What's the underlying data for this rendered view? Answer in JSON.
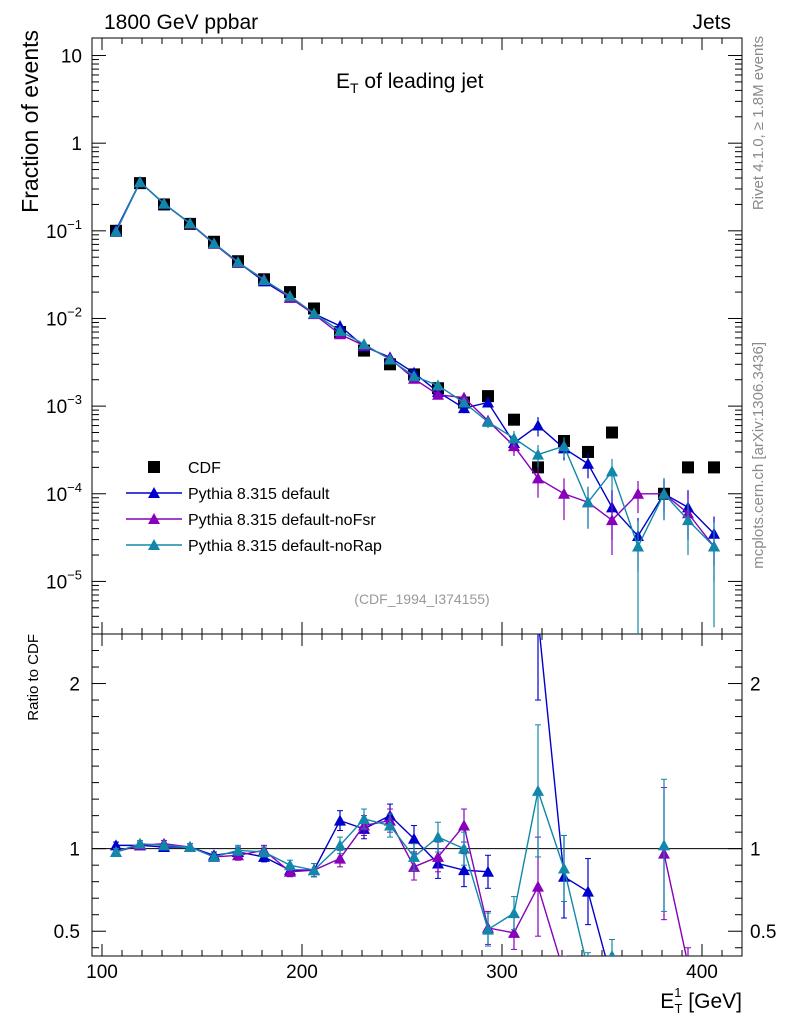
{
  "header": {
    "left": "1800 GeV ppbar",
    "right": "Jets"
  },
  "side_labels": {
    "rivet": "Rivet 4.1.0, ≥ 1.8M events",
    "mcplots": "mcplots.cern.ch [arXiv:1306.3436]"
  },
  "chart_data": {
    "type": "scatter",
    "title_main": "E",
    "title_sub": "T",
    "title_rest": " of leading jet",
    "watermark": "(CDF_1994_I374155)",
    "ylabel": "Fraction of events",
    "ratio_ylabel": "Ratio to CDF",
    "xlabel_main": "E",
    "xlabel_sup": "1",
    "xlabel_sub": "T",
    "xlabel_rest": " [GeV]",
    "xlim": [
      95,
      420
    ],
    "ylim_log": [
      -5.6,
      1.2
    ],
    "ratio_ylim": [
      0.35,
      2.3
    ],
    "x_ticks": [
      100,
      200,
      300,
      400
    ],
    "x_tick_labels": [
      "100",
      "200",
      "300",
      "400"
    ],
    "y_ticks": [
      {
        "value": 1,
        "base": "10",
        "exp": ""
      },
      {
        "value": 0,
        "base": "1",
        "exp": ""
      },
      {
        "value": -1,
        "base": "10",
        "exp": "−1"
      },
      {
        "value": -2,
        "base": "10",
        "exp": "−2"
      },
      {
        "value": -3,
        "base": "10",
        "exp": "−3"
      },
      {
        "value": -4,
        "base": "10",
        "exp": "−4"
      },
      {
        "value": -5,
        "base": "10",
        "exp": "−5"
      }
    ],
    "ratio_ticks": [
      0.5,
      1,
      2
    ],
    "ratio_tick_labels": [
      "0.5",
      "1",
      "2"
    ],
    "legend_position": "lower-left",
    "x": [
      107,
      119,
      131,
      144,
      156,
      168,
      181,
      194,
      206,
      219,
      231,
      244,
      256,
      268,
      281,
      293,
      306,
      318,
      331,
      343,
      355,
      368,
      381,
      393,
      406
    ],
    "series": [
      {
        "name": "CDF",
        "color": "#000000",
        "marker": "square",
        "values": [
          0.1,
          0.35,
          0.2,
          0.12,
          0.075,
          0.045,
          0.028,
          0.02,
          0.013,
          0.007,
          0.0043,
          0.003,
          0.0023,
          0.0016,
          0.0011,
          0.0013,
          0.0007,
          0.0002,
          0.0004,
          0.0003,
          0.0005,
          null,
          0.0001,
          0.0002,
          0.0002
        ]
      },
      {
        "name": "Pythia 8.315 default",
        "color": "#0000cc",
        "marker": "triangle",
        "values": [
          0.102,
          0.36,
          0.203,
          0.122,
          0.072,
          0.044,
          0.0265,
          0.0173,
          0.0113,
          0.0082,
          0.0048,
          0.0036,
          0.0024,
          0.00145,
          0.00095,
          0.0011,
          0.00038,
          0.0006,
          0.00033,
          0.00022,
          7e-05,
          3.3e-05,
          0.0001,
          7e-05,
          3.5e-05
        ],
        "errors": [
          0.003,
          0.01,
          0.006,
          0.004,
          0.002,
          0.0015,
          0.001,
          0.0007,
          0.0005,
          0.0004,
          0.0003,
          0.00025,
          0.0002,
          0.00015,
          0.00012,
          0.00013,
          8e-05,
          0.00015,
          9e-05,
          7e-05,
          4e-05,
          2e-05,
          5e-05,
          4e-05,
          2e-05
        ]
      },
      {
        "name": "Pythia 8.315 default-noFsr",
        "color": "#8800bb",
        "marker": "triangle",
        "values": [
          0.098,
          0.358,
          0.205,
          0.121,
          0.071,
          0.043,
          0.028,
          0.0172,
          0.0112,
          0.0066,
          0.0049,
          0.0035,
          0.00205,
          0.00135,
          0.00125,
          0.00068,
          0.00035,
          0.00015,
          0.0001,
          8e-05,
          5e-05,
          0.0001,
          0.0001,
          6e-05,
          2.5e-05
        ],
        "errors": [
          0.003,
          0.01,
          0.006,
          0.004,
          0.002,
          0.0015,
          0.001,
          0.0007,
          0.0005,
          0.0004,
          0.0003,
          0.00025,
          0.0002,
          0.00015,
          0.00015,
          0.0001,
          8e-05,
          6e-05,
          5e-05,
          4e-05,
          3e-05,
          4e-05,
          4e-05,
          3e-05,
          1.5e-05
        ]
      },
      {
        "name": "Pythia 8.315 default-noRap",
        "color": "#1188aa",
        "marker": "triangle",
        "values": [
          0.098,
          0.36,
          0.204,
          0.122,
          0.072,
          0.044,
          0.0275,
          0.018,
          0.0114,
          0.0072,
          0.0051,
          0.0034,
          0.0022,
          0.00172,
          0.0011,
          0.00066,
          0.00043,
          0.00028,
          0.00035,
          8e-05,
          0.00018,
          2.5e-05,
          0.0001,
          5e-05,
          2.5e-05
        ],
        "errors": [
          0.003,
          0.01,
          0.006,
          0.004,
          0.002,
          0.0015,
          0.001,
          0.0007,
          0.0005,
          0.0004,
          0.0003,
          0.00025,
          0.0002,
          0.00015,
          0.00013,
          0.0001,
          9e-05,
          8e-05,
          9e-05,
          4e-05,
          7e-05,
          2.4e-05,
          5e-05,
          3e-05,
          2.2e-05
        ]
      }
    ],
    "ratio_series": [
      {
        "name": "Pythia 8.315 default",
        "color": "#0000cc",
        "values": [
          1.02,
          1.02,
          1.01,
          1.01,
          0.96,
          0.98,
          0.95,
          0.87,
          0.87,
          1.17,
          1.12,
          1.2,
          1.06,
          0.91,
          0.87,
          0.86,
          null,
          2.4,
          0.83,
          0.74,
          0.2,
          null,
          null,
          null,
          null
        ],
        "errors": [
          0.02,
          0.02,
          0.02,
          0.02,
          0.02,
          0.03,
          0.03,
          0.03,
          0.04,
          0.06,
          0.06,
          0.07,
          0.08,
          0.09,
          0.1,
          0.1,
          null,
          0.5,
          0.25,
          0.2,
          0.1,
          null,
          null,
          null,
          null
        ]
      },
      {
        "name": "Pythia 8.315 default-noFsr",
        "color": "#8800bb",
        "values": [
          0.98,
          1.02,
          1.03,
          1.01,
          0.95,
          0.96,
          0.99,
          0.86,
          0.87,
          0.94,
          1.14,
          1.17,
          0.89,
          0.95,
          1.14,
          0.52,
          0.49,
          0.77,
          0.25,
          null,
          null,
          null,
          0.97,
          0.3,
          null
        ],
        "errors": [
          0.02,
          0.02,
          0.02,
          0.02,
          0.02,
          0.03,
          0.03,
          0.03,
          0.04,
          0.05,
          0.06,
          0.07,
          0.08,
          0.09,
          0.1,
          0.1,
          0.1,
          0.3,
          0.1,
          null,
          null,
          null,
          0.4,
          0.1,
          null
        ]
      },
      {
        "name": "Pythia 8.315 default-noRap",
        "color": "#1188aa",
        "values": [
          0.98,
          1.03,
          1.02,
          1.01,
          0.95,
          0.99,
          0.98,
          0.9,
          0.87,
          1.02,
          1.18,
          1.14,
          0.95,
          1.07,
          1.0,
          0.51,
          0.61,
          1.35,
          0.88,
          0.27,
          0.35,
          null,
          1.02,
          null,
          null
        ],
        "errors": [
          0.02,
          0.02,
          0.02,
          0.02,
          0.02,
          0.03,
          0.03,
          0.03,
          0.04,
          0.05,
          0.06,
          0.07,
          0.08,
          0.09,
          0.1,
          0.1,
          0.1,
          0.4,
          0.2,
          0.1,
          0.1,
          null,
          0.4,
          null,
          null
        ]
      }
    ]
  }
}
